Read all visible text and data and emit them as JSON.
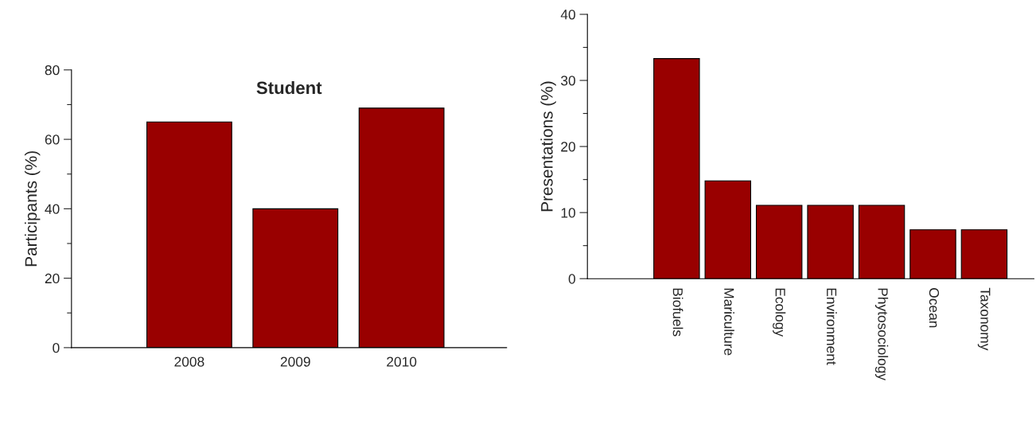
{
  "chart_data": [
    {
      "type": "bar",
      "title": "Student",
      "ylabel": "Participants (%)",
      "categories": [
        "2008",
        "2009",
        "2010"
      ],
      "values": [
        65,
        40,
        69
      ],
      "color": "#990000",
      "ylim": [
        0,
        80
      ],
      "yticks": [
        0,
        20,
        40,
        60,
        80
      ],
      "grid": false
    },
    {
      "type": "bar",
      "ylabel": "Presentations (%)",
      "categories": [
        "Biofuels",
        "Mariculture",
        "Ecology",
        "Environment",
        "Phytosociology",
        "Ocean",
        "Taxonomy"
      ],
      "values": [
        33.3,
        14.8,
        11.1,
        11.1,
        11.1,
        7.4,
        7.4
      ],
      "color": "#990000",
      "ylim": [
        0,
        40
      ],
      "yticks": [
        0,
        10,
        20,
        30,
        40
      ],
      "grid": false
    }
  ]
}
